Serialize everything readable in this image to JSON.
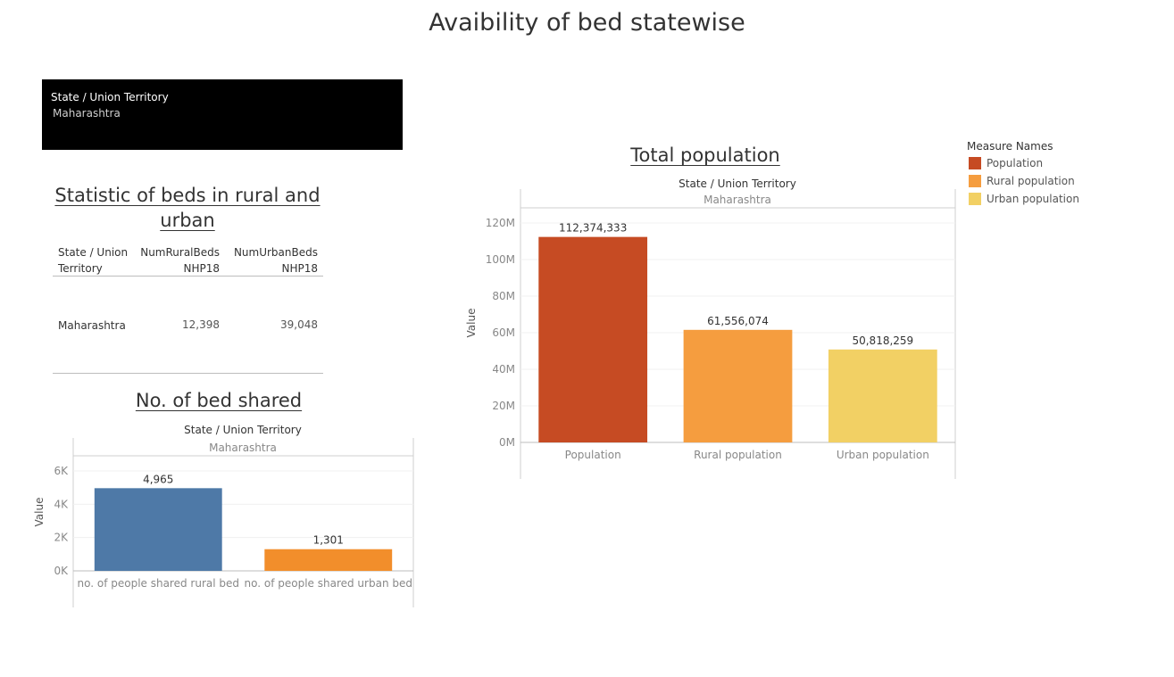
{
  "dashboard": {
    "title": "Avaibility of bed statewise"
  },
  "filter": {
    "label": "State / Union Territory",
    "value": "Maharashtra"
  },
  "beds_table": {
    "title": "Statistic of beds in rural and urban",
    "headers": {
      "state_line1": "State / Union",
      "state_line2": "Territory",
      "rural_line1": "NumRuralBeds",
      "rural_line2": "NHP18",
      "urban_line1": "NumUrbanBeds",
      "urban_line2": "NHP18"
    },
    "row": {
      "state": "Maharashtra",
      "rural": "12,398",
      "urban": "39,048"
    }
  },
  "legend": {
    "title": "Measure Names",
    "items": [
      {
        "label": "Population",
        "color": "#c64b23"
      },
      {
        "label": "Rural population",
        "color": "#f59d3f"
      },
      {
        "label": "Urban population",
        "color": "#f2d064"
      }
    ]
  },
  "chart_data": [
    {
      "type": "bar",
      "title": "No. of bed shared",
      "pane_title": "State / Union Territory",
      "pane_value": "Maharashtra",
      "ylabel": "Value",
      "categories": [
        "no. of people shared rural bed",
        "no. of people shared urban bed"
      ],
      "values": [
        4965,
        1301
      ],
      "value_labels": [
        "4,965",
        "1,301"
      ],
      "colors": [
        "#4e79a7",
        "#f28e2b"
      ],
      "ylim": [
        0,
        6000
      ],
      "ticks": [
        0,
        2000,
        4000,
        6000
      ],
      "tick_labels": [
        "0K",
        "2K",
        "4K",
        "6K"
      ]
    },
    {
      "type": "bar",
      "title": "Total population",
      "pane_title": "State / Union Territory",
      "pane_value": "Maharashtra",
      "ylabel": "Value",
      "categories": [
        "Population",
        "Rural population",
        "Urban population"
      ],
      "values": [
        112374333,
        61556074,
        50818259
      ],
      "value_labels": [
        "112,374,333",
        "61,556,074",
        "50,818,259"
      ],
      "colors": [
        "#c64b23",
        "#f59d3f",
        "#f2d064"
      ],
      "ylim": [
        0,
        120000000
      ],
      "ticks": [
        0,
        20000000,
        40000000,
        60000000,
        80000000,
        100000000,
        120000000
      ],
      "tick_labels": [
        "0M",
        "20M",
        "40M",
        "60M",
        "80M",
        "100M",
        "120M"
      ]
    }
  ]
}
